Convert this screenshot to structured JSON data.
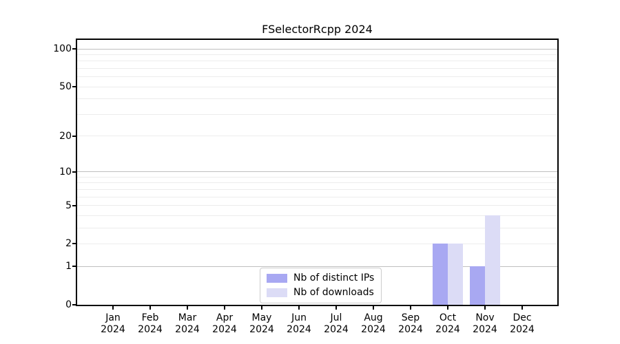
{
  "chart_data": {
    "type": "bar",
    "title": "FSelectorRcpp 2024",
    "categories": [
      "Jan 2024",
      "Feb 2024",
      "Mar 2024",
      "Apr 2024",
      "May 2024",
      "Jun 2024",
      "Jul 2024",
      "Aug 2024",
      "Sep 2024",
      "Oct 2024",
      "Nov 2024",
      "Dec 2024"
    ],
    "x_tick_line1": [
      "Jan",
      "Feb",
      "Mar",
      "Apr",
      "May",
      "Jun",
      "Jul",
      "Aug",
      "Sep",
      "Oct",
      "Nov",
      "Dec"
    ],
    "x_tick_line2": [
      "2024",
      "2024",
      "2024",
      "2024",
      "2024",
      "2024",
      "2024",
      "2024",
      "2024",
      "2024",
      "2024",
      "2024"
    ],
    "series": [
      {
        "name": "Nb of distinct IPs",
        "color": "#a8a8f2",
        "values": [
          0,
          0,
          0,
          0,
          0,
          0,
          0,
          0,
          0,
          2,
          1,
          0
        ]
      },
      {
        "name": "Nb of downloads",
        "color": "#dcdcf6",
        "values": [
          0,
          0,
          0,
          0,
          0,
          0,
          0,
          0,
          0,
          2,
          4,
          0
        ]
      }
    ],
    "yscale": "log1p",
    "ylim": [
      0,
      118
    ],
    "y_tick_values": [
      0,
      1,
      2,
      5,
      10,
      20,
      50,
      100
    ],
    "y_major_gridlines": [
      1,
      10,
      100
    ],
    "y_minor_gridlines": [
      2,
      3,
      4,
      5,
      6,
      7,
      8,
      9,
      20,
      30,
      40,
      50,
      60,
      70,
      80,
      90
    ],
    "grid": true,
    "legend_position": "lower center",
    "colors": {
      "axis": "#000000",
      "major_grid": "#bfbfbf",
      "minor_grid": "#ececec",
      "legend_border": "#cccccc",
      "background": "#ffffff"
    }
  }
}
